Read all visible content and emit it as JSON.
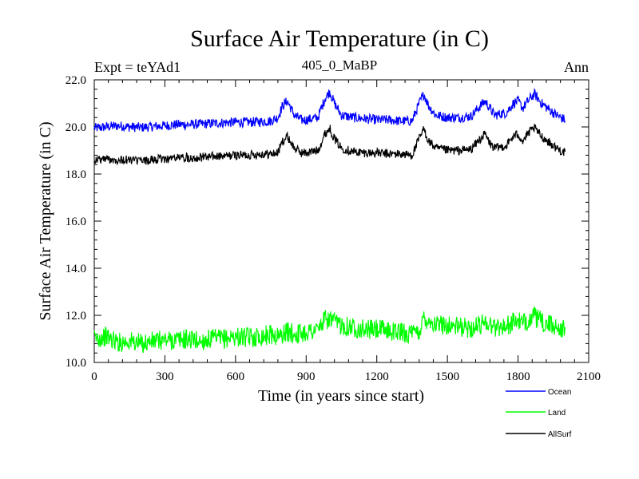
{
  "chart_data": {
    "type": "line",
    "title": "Surface Air Temperature (in C)",
    "subtitle": "405_0_MaBP",
    "experiment_label": "Expt = teYAd1",
    "period_label": "Ann",
    "xlabel": "Time (in years since start)",
    "ylabel": "Surface Air Temperature (in C)",
    "xlim": [
      0,
      2100
    ],
    "ylim": [
      10,
      22
    ],
    "xticks": [
      0,
      300,
      600,
      900,
      1200,
      1500,
      1800,
      2100
    ],
    "xtick_labels": [
      "0",
      "300",
      "600",
      "900",
      "1200",
      "1500",
      "1800",
      "2100"
    ],
    "yticks": [
      10,
      12,
      14,
      16,
      18,
      20,
      22
    ],
    "ytick_labels": [
      "10.0",
      "12.0",
      "14.0",
      "16.0",
      "18.0",
      "20.0",
      "22.0"
    ],
    "grid": false,
    "legend_position": "bottom-right",
    "x": [
      0,
      50,
      100,
      150,
      200,
      250,
      300,
      350,
      400,
      450,
      500,
      550,
      600,
      650,
      700,
      750,
      780,
      800,
      820,
      850,
      880,
      900,
      950,
      980,
      1000,
      1020,
      1050,
      1100,
      1150,
      1200,
      1250,
      1300,
      1350,
      1380,
      1400,
      1420,
      1450,
      1500,
      1550,
      1600,
      1640,
      1660,
      1680,
      1700,
      1750,
      1780,
      1800,
      1820,
      1850,
      1870,
      1900,
      1950,
      1980,
      2000
    ],
    "series": [
      {
        "name": "Ocean",
        "color": "#0000ff",
        "values": [
          19.95,
          20.0,
          20.05,
          20.0,
          19.98,
          20.02,
          20.05,
          20.1,
          20.1,
          20.12,
          20.15,
          20.18,
          20.2,
          20.2,
          20.22,
          20.25,
          20.4,
          20.9,
          21.1,
          20.5,
          20.3,
          20.3,
          20.4,
          21.2,
          21.5,
          21.0,
          20.5,
          20.4,
          20.35,
          20.3,
          20.3,
          20.25,
          20.25,
          21.0,
          21.4,
          20.9,
          20.5,
          20.4,
          20.4,
          20.45,
          20.9,
          21.1,
          20.8,
          20.5,
          20.6,
          21.0,
          21.1,
          20.8,
          21.2,
          21.4,
          21.0,
          20.6,
          20.4,
          20.3
        ]
      },
      {
        "name": "Land",
        "color": "#00ff00",
        "values": [
          11.0,
          11.1,
          10.85,
          10.9,
          10.8,
          10.9,
          10.95,
          10.95,
          11.0,
          10.9,
          11.0,
          11.0,
          11.1,
          11.05,
          11.1,
          11.2,
          11.1,
          11.2,
          11.3,
          11.2,
          11.25,
          11.3,
          11.4,
          11.8,
          11.85,
          11.7,
          11.6,
          11.5,
          11.4,
          11.4,
          11.35,
          11.3,
          11.2,
          11.3,
          11.9,
          11.8,
          11.6,
          11.6,
          11.5,
          11.45,
          11.6,
          11.8,
          11.6,
          11.5,
          11.55,
          11.7,
          11.8,
          11.6,
          11.9,
          11.95,
          11.7,
          11.55,
          11.5,
          11.3
        ]
      },
      {
        "name": "AllSurf",
        "color": "#000000",
        "values": [
          18.6,
          18.65,
          18.6,
          18.6,
          18.55,
          18.6,
          18.65,
          18.7,
          18.7,
          18.7,
          18.75,
          18.75,
          18.8,
          18.8,
          18.85,
          18.85,
          18.9,
          19.4,
          19.6,
          19.1,
          18.9,
          18.9,
          19.0,
          19.7,
          19.95,
          19.5,
          19.1,
          18.95,
          18.9,
          18.9,
          18.85,
          18.85,
          18.8,
          19.5,
          19.9,
          19.4,
          19.1,
          19.0,
          19.0,
          19.05,
          19.5,
          19.7,
          19.3,
          19.1,
          19.2,
          19.6,
          19.7,
          19.4,
          19.8,
          19.95,
          19.6,
          19.2,
          19.0,
          18.9
        ]
      }
    ]
  }
}
